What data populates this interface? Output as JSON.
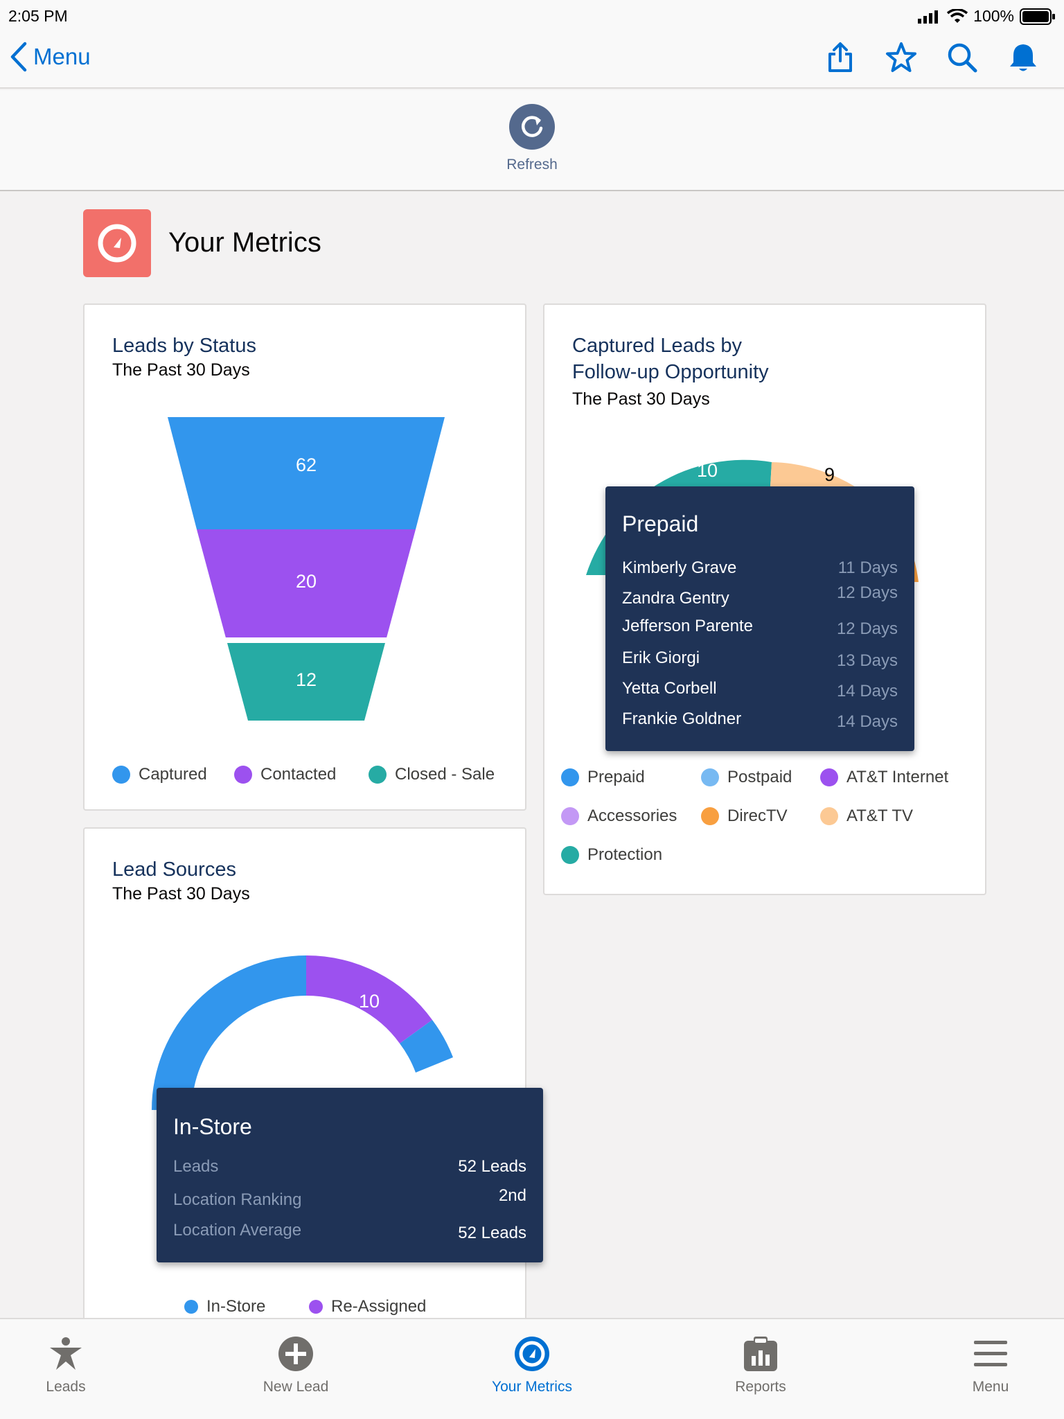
{
  "status_bar": {
    "time": "2:05 PM",
    "battery": "100%"
  },
  "nav": {
    "back_label": "Menu",
    "actions": [
      "share-icon",
      "star-icon",
      "search-icon",
      "bell-icon"
    ]
  },
  "refresh": {
    "label": "Refresh"
  },
  "page": {
    "title": "Your Metrics",
    "accent": "#f2706a"
  },
  "leads_by_status": {
    "title": "Leads by Status",
    "subtitle": "The Past 30 Days",
    "chart_data": {
      "type": "funnel",
      "categories": [
        "Captured",
        "Contacted",
        "Closed - Sale"
      ],
      "values": [
        62,
        20,
        12
      ],
      "colors": [
        "#3296ed",
        "#9c51ef",
        "#26aba4"
      ]
    },
    "legend": [
      "Captured",
      "Contacted",
      "Closed - Sale"
    ]
  },
  "followup": {
    "title_line1": "Captured Leads by",
    "title_line2": "Follow-up Opportunity",
    "subtitle": "The Past 30 Days",
    "visible_values": [
      "10",
      "9"
    ],
    "legend": [
      {
        "label": "Prepaid",
        "color": "#3296ed"
      },
      {
        "label": "Postpaid",
        "color": "#77b9f2"
      },
      {
        "label": "AT&T Internet",
        "color": "#9c51ef"
      },
      {
        "label": "Accessories",
        "color": "#c398f5"
      },
      {
        "label": "DirecTV",
        "color": "#f89f40"
      },
      {
        "label": "AT&T TV",
        "color": "#fcc994"
      },
      {
        "label": "Protection",
        "color": "#26aba4"
      }
    ],
    "tooltip": {
      "title": "Prepaid",
      "rows": [
        {
          "name": "Kimberly Grave",
          "days": "11 Days"
        },
        {
          "name": "Zandra Gentry",
          "days": "12 Days"
        },
        {
          "name": "Jefferson Parente",
          "days": "12 Days"
        },
        {
          "name": "Erik Giorgi",
          "days": "13 Days"
        },
        {
          "name": "Yetta Corbell",
          "days": "14 Days"
        },
        {
          "name": "Frankie Goldner",
          "days": "14 Days"
        }
      ]
    }
  },
  "lead_sources": {
    "title": "Lead Sources",
    "subtitle": "The Past 30 Days",
    "visible_value": "10",
    "legend": [
      {
        "label": "In-Store",
        "color": "#3296ed"
      },
      {
        "label": "Re-Assigned",
        "color": "#9c51ef"
      }
    ],
    "tooltip": {
      "title": "In-Store",
      "rows": [
        {
          "label": "Leads",
          "value": "52 Leads"
        },
        {
          "label": "Location Ranking",
          "value": "2nd"
        },
        {
          "label": "Location Average",
          "value": "52 Leads"
        }
      ]
    }
  },
  "tabbar": {
    "tabs": [
      {
        "label": "Leads",
        "icon": "star-person-icon"
      },
      {
        "label": "New Lead",
        "icon": "plus-circle-icon"
      },
      {
        "label": "Your Metrics",
        "icon": "gauge-icon",
        "active": true
      },
      {
        "label": "Reports",
        "icon": "clipboard-chart-icon"
      },
      {
        "label": "Menu",
        "icon": "hamburger-icon"
      }
    ]
  }
}
